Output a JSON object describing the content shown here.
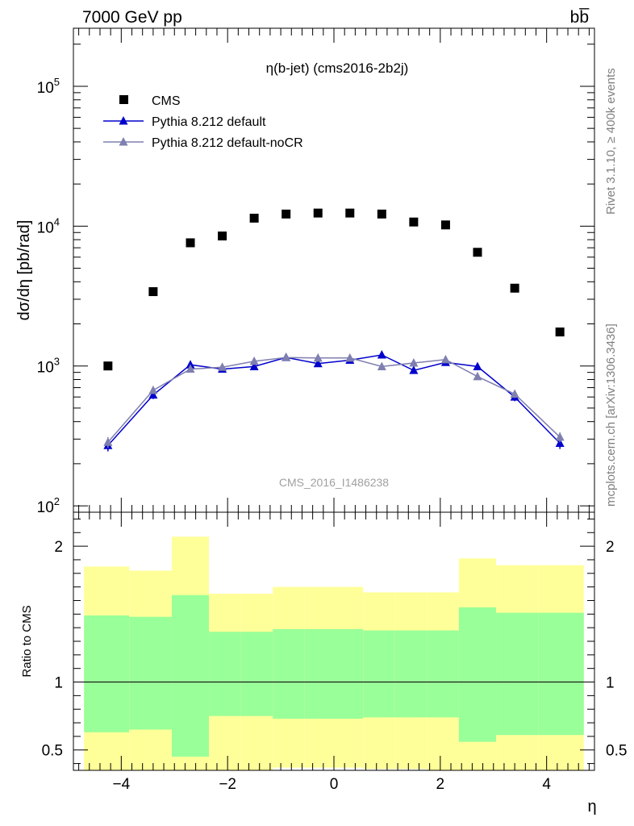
{
  "header": {
    "left": "7000 GeV pp",
    "right": "bb̅"
  },
  "side_labels": {
    "rivet": "Rivet 3.1.10, ≥ 400k events",
    "mcplots": "mcplots.cern.ch [arXiv:1306.3436]"
  },
  "chart_data": [
    {
      "type": "scatter",
      "title": "η(b-jet) (cms2016-2b2j)",
      "watermark": "CMS_2016_I1486238",
      "ylabel": "dσ/dη [pb/rad]",
      "yscale": "log",
      "xlim": [
        -4.9,
        4.9
      ],
      "ylim": [
        90,
        260000
      ],
      "ytick_labels": [
        {
          "value": 100,
          "base": "10",
          "exp": "2"
        },
        {
          "value": 1000,
          "base": "10",
          "exp": "3"
        },
        {
          "value": 10000,
          "base": "10",
          "exp": "4"
        },
        {
          "value": 100000,
          "base": "10",
          "exp": "5"
        }
      ],
      "legend_position": "top-left",
      "series": [
        {
          "name": "CMS",
          "marker": "square",
          "color": "#000000",
          "x": [
            -4.25,
            -3.4,
            -2.7,
            -2.1,
            -1.5,
            -0.9,
            -0.3,
            0.3,
            0.9,
            1.5,
            2.1,
            2.7,
            3.4,
            4.25
          ],
          "y": [
            1000,
            3400,
            7600,
            8500,
            11400,
            12200,
            12400,
            12400,
            12200,
            10700,
            10200,
            6500,
            3600,
            1750
          ]
        },
        {
          "name": "Pythia 8.212 default",
          "marker": "triangle",
          "color": "#0000cc",
          "x": [
            -4.25,
            -3.4,
            -2.7,
            -2.1,
            -1.5,
            -0.9,
            -0.3,
            0.3,
            0.9,
            1.5,
            2.1,
            2.7,
            3.4,
            4.25
          ],
          "y": [
            270,
            620,
            1020,
            950,
            990,
            1150,
            1040,
            1100,
            1200,
            930,
            1060,
            990,
            600,
            280
          ],
          "err": [
            25,
            40,
            60,
            45,
            45,
            55,
            50,
            55,
            60,
            45,
            50,
            55,
            40,
            25
          ]
        },
        {
          "name": "Pythia 8.212 default-noCR",
          "marker": "triangle",
          "color": "#7f7fb0",
          "x": [
            -4.25,
            -3.4,
            -2.7,
            -2.1,
            -1.5,
            -0.9,
            -0.3,
            0.3,
            0.9,
            1.5,
            2.1,
            2.7,
            3.4,
            4.25
          ],
          "y": [
            285,
            670,
            950,
            980,
            1080,
            1150,
            1140,
            1140,
            990,
            1050,
            1110,
            840,
            630,
            310
          ],
          "err": [
            25,
            40,
            50,
            45,
            50,
            55,
            55,
            55,
            50,
            50,
            50,
            45,
            40,
            25
          ]
        }
      ]
    },
    {
      "type": "area",
      "ylabel": "Ratio to CMS",
      "xlabel": "η",
      "xlim": [
        -4.9,
        4.9
      ],
      "ylim": [
        0.35,
        2.25
      ],
      "xticks": [
        -4,
        -2,
        0,
        2,
        4
      ],
      "xtick_labels": [
        "−4",
        "−2",
        "0",
        "2",
        "4"
      ],
      "yticks": [
        0.5,
        1,
        2
      ],
      "ytick_labels": [
        "0.5",
        "1",
        "2"
      ],
      "reference_line": 1,
      "bands": {
        "bin_edges": [
          -4.7,
          -3.85,
          -3.05,
          -2.35,
          -1.75,
          -1.15,
          -0.55,
          0.55,
          1.15,
          1.75,
          2.35,
          3.05,
          3.85,
          4.7
        ],
        "inner_color": "#99ff99",
        "outer_color": "#ffff99",
        "inner_low": [
          0.63,
          0.65,
          0.45,
          0.75,
          0.75,
          0.73,
          0.73,
          0.74,
          0.74,
          0.74,
          0.56,
          0.61,
          0.61
        ],
        "inner_high": [
          1.49,
          1.48,
          1.64,
          1.37,
          1.37,
          1.39,
          1.39,
          1.38,
          1.38,
          1.38,
          1.55,
          1.51,
          1.51
        ],
        "outer_low": [
          0.35,
          0.35,
          0.35,
          0.35,
          0.35,
          0.37,
          0.37,
          0.36,
          0.36,
          0.35,
          0.35,
          0.35,
          0.35
        ],
        "outer_high": [
          1.85,
          1.82,
          2.07,
          1.65,
          1.65,
          1.7,
          1.7,
          1.66,
          1.66,
          1.66,
          1.91,
          1.86,
          1.86
        ]
      }
    }
  ]
}
